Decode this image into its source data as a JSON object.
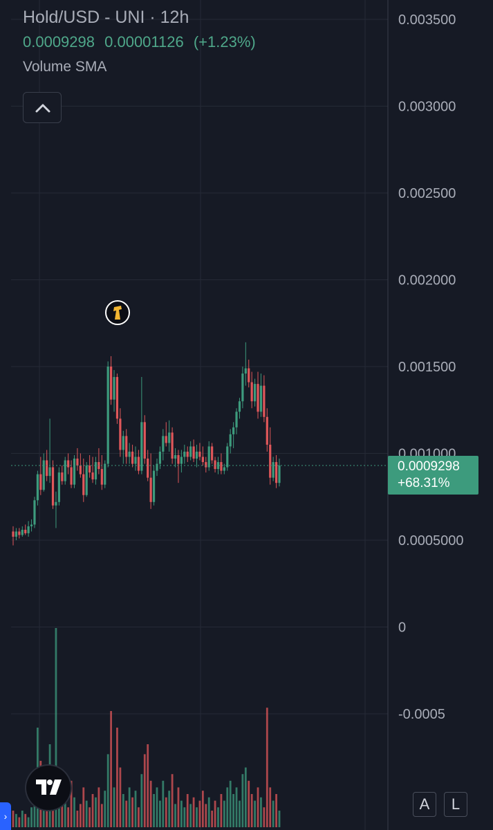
{
  "header": {
    "title": "Hold/USD - UNI · 12h",
    "last_price": "0.0009298",
    "change_abs": "0.00001126",
    "change_pct": "(+1.23%)",
    "indicator": "Volume SMA"
  },
  "price_tag": {
    "price": "0.0009298",
    "change": "+68.31%"
  },
  "buttons": {
    "auto_scale": "A",
    "log_scale": "L"
  },
  "colors": {
    "up": "#3d9b7d",
    "down": "#e0575a",
    "background": "#161a25",
    "grid": "#252a36",
    "text": "#a9adb8"
  },
  "icons": {
    "collapse": "chevron-up-icon",
    "logo": "tradingview-logo-icon",
    "event": "event-marker-icon"
  },
  "chart_data": {
    "type": "candlestick",
    "y_axis_labels": [
      "0.003500",
      "0.003000",
      "0.002500",
      "0.002000",
      "0.001500",
      "0.001000",
      "0.0005000",
      "0",
      "-0.0005"
    ],
    "y_axis_values": [
      0.0035,
      0.003,
      0.0025,
      0.002,
      0.0015,
      0.001,
      0.0005,
      0,
      -0.0005
    ],
    "last_price": 0.0009298,
    "candles": [
      [
        0.00055,
        0.00058,
        0.00047,
        0.00052
      ],
      [
        0.00052,
        0.00057,
        0.0005,
        0.00055
      ],
      [
        0.00055,
        0.00057,
        0.00051,
        0.00053
      ],
      [
        0.00053,
        0.00058,
        0.00052,
        0.00056
      ],
      [
        0.00056,
        0.00059,
        0.00053,
        0.00054
      ],
      [
        0.00054,
        0.00061,
        0.00052,
        0.00058
      ],
      [
        0.00058,
        0.00062,
        0.00055,
        0.00059
      ],
      [
        0.00059,
        0.00075,
        0.00057,
        0.00073
      ],
      [
        0.00073,
        0.0009,
        0.0007,
        0.00088
      ],
      [
        0.00088,
        0.00098,
        0.00076,
        0.00079
      ],
      [
        0.00079,
        0.001,
        0.00078,
        0.00096
      ],
      [
        0.00096,
        0.00102,
        0.00084,
        0.00087
      ],
      [
        0.00087,
        0.0012,
        0.00083,
        0.00092
      ],
      [
        0.00092,
        0.00096,
        0.00068,
        0.0007
      ],
      [
        0.0007,
        0.00078,
        0.00057,
        0.00072
      ],
      [
        0.00072,
        0.00092,
        0.0007,
        0.00089
      ],
      [
        0.00089,
        0.00093,
        0.00082,
        0.00084
      ],
      [
        0.00084,
        0.00098,
        0.00082,
        0.00096
      ],
      [
        0.00096,
        0.001,
        0.00088,
        0.00092
      ],
      [
        0.00092,
        0.00096,
        0.0008,
        0.00082
      ],
      [
        0.00082,
        0.00099,
        0.0008,
        0.00097
      ],
      [
        0.00097,
        0.00103,
        0.0009,
        0.00093
      ],
      [
        0.00093,
        0.001,
        0.00086,
        0.00088
      ],
      [
        0.00088,
        0.00097,
        0.00072,
        0.00076
      ],
      [
        0.00076,
        0.00095,
        0.00075,
        0.00093
      ],
      [
        0.00093,
        0.00099,
        0.00086,
        0.00089
      ],
      [
        0.00089,
        0.00098,
        0.00083,
        0.00085
      ],
      [
        0.00085,
        0.00098,
        0.00082,
        0.00095
      ],
      [
        0.00095,
        0.00103,
        0.00088,
        0.00091
      ],
      [
        0.00091,
        0.00099,
        0.00079,
        0.00082
      ],
      [
        0.00082,
        0.00096,
        0.0008,
        0.00094
      ],
      [
        0.00094,
        0.00153,
        0.00092,
        0.0015
      ],
      [
        0.0015,
        0.00156,
        0.00128,
        0.00131
      ],
      [
        0.00131,
        0.00148,
        0.00124,
        0.00144
      ],
      [
        0.00144,
        0.00146,
        0.00117,
        0.0012
      ],
      [
        0.0012,
        0.00126,
        0.00098,
        0.00102
      ],
      [
        0.00102,
        0.00113,
        0.00094,
        0.0011
      ],
      [
        0.0011,
        0.00114,
        0.00094,
        0.00098
      ],
      [
        0.00098,
        0.00106,
        0.00094,
        0.00101
      ],
      [
        0.00101,
        0.00105,
        0.00092,
        0.00094
      ],
      [
        0.00094,
        0.00104,
        0.0009,
        0.00098
      ],
      [
        0.00098,
        0.00102,
        0.00088,
        0.0009
      ],
      [
        0.0009,
        0.00144,
        0.00088,
        0.00118
      ],
      [
        0.00118,
        0.00122,
        0.00094,
        0.00097
      ],
      [
        0.00097,
        0.00102,
        0.00084,
        0.00086
      ],
      [
        0.00086,
        0.001,
        0.00068,
        0.00072
      ],
      [
        0.00072,
        0.00093,
        0.0007,
        0.0009
      ],
      [
        0.0009,
        0.00097,
        0.00087,
        0.00094
      ],
      [
        0.00094,
        0.00104,
        0.00091,
        0.00101
      ],
      [
        0.00101,
        0.00114,
        0.00096,
        0.0011
      ],
      [
        0.0011,
        0.00118,
        0.00104,
        0.00106
      ],
      [
        0.00106,
        0.00119,
        0.00101,
        0.00112
      ],
      [
        0.00112,
        0.00115,
        0.00094,
        0.00097
      ],
      [
        0.00097,
        0.00103,
        0.00092,
        0.00099
      ],
      [
        0.00099,
        0.00102,
        0.00083,
        0.00094
      ],
      [
        0.00094,
        0.00102,
        0.00089,
        0.00098
      ],
      [
        0.00098,
        0.00105,
        0.00094,
        0.00101
      ],
      [
        0.00101,
        0.00104,
        0.00095,
        0.00098
      ],
      [
        0.00098,
        0.00107,
        0.00096,
        0.00104
      ],
      [
        0.00104,
        0.00108,
        0.00095,
        0.00097
      ],
      [
        0.00097,
        0.00105,
        0.00092,
        0.00101
      ],
      [
        0.00101,
        0.00106,
        0.00096,
        0.00098
      ],
      [
        0.00098,
        0.00104,
        0.00093,
        0.00095
      ],
      [
        0.00095,
        0.00098,
        0.00089,
        0.00092
      ],
      [
        0.00092,
        0.00107,
        0.0009,
        0.00104
      ],
      [
        0.00104,
        0.00106,
        0.00094,
        0.00096
      ],
      [
        0.00096,
        0.00098,
        0.00089,
        0.00091
      ],
      [
        0.00091,
        0.00098,
        0.00088,
        0.00095
      ],
      [
        0.00095,
        0.001,
        0.00088,
        0.0009
      ],
      [
        0.0009,
        0.00094,
        0.00088,
        0.00092
      ],
      [
        0.00092,
        0.00106,
        0.0009,
        0.00104
      ],
      [
        0.00104,
        0.00114,
        0.001,
        0.00111
      ],
      [
        0.00111,
        0.00118,
        0.00103,
        0.00115
      ],
      [
        0.00115,
        0.00126,
        0.00111,
        0.00124
      ],
      [
        0.00124,
        0.00132,
        0.0012,
        0.0013
      ],
      [
        0.0013,
        0.0015,
        0.00126,
        0.00146
      ],
      [
        0.00146,
        0.00164,
        0.00139,
        0.00149
      ],
      [
        0.00149,
        0.00154,
        0.00138,
        0.00141
      ],
      [
        0.00141,
        0.00147,
        0.00126,
        0.0013
      ],
      [
        0.0013,
        0.00143,
        0.00127,
        0.0014
      ],
      [
        0.0014,
        0.00147,
        0.0012,
        0.00124
      ],
      [
        0.00124,
        0.00146,
        0.00121,
        0.00139
      ],
      [
        0.00139,
        0.00145,
        0.00118,
        0.00121
      ],
      [
        0.00121,
        0.00126,
        0.00101,
        0.00105
      ],
      [
        0.00105,
        0.00115,
        0.00082,
        0.00086
      ],
      [
        0.00086,
        0.00098,
        0.00084,
        0.00095
      ],
      [
        0.00095,
        0.00099,
        0.0008,
        0.00083
      ],
      [
        0.00083,
        0.00097,
        0.00081,
        0.00093
      ]
    ],
    "volumes": [
      5e-05,
      4e-05,
      3e-05,
      5e-05,
      4e-05,
      3e-05,
      6e-05,
      0.00012,
      0.0003,
      0.0002,
      0.00015,
      0.0001,
      0.00025,
      0.00016,
      0.0006,
      0.00012,
      8e-05,
      0.0001,
      6e-05,
      0.00014,
      9e-05,
      5e-05,
      7e-05,
      0.00012,
      8e-05,
      6e-05,
      0.0001,
      9e-05,
      0.00012,
      7e-05,
      0.00011,
      0.00022,
      0.00035,
      0.00012,
      0.0003,
      0.00018,
      0.0001,
      8e-05,
      0.00012,
      9e-05,
      0.00011,
      6e-05,
      0.00016,
      0.00022,
      0.00025,
      0.00014,
      0.0001,
      0.00012,
      8e-05,
      0.00014,
      9e-05,
      0.00011,
      0.00016,
      7e-05,
      0.00012,
      8e-05,
      6e-05,
      0.0001,
      7e-05,
      9e-05,
      6e-05,
      8e-05,
      0.00011,
      7e-05,
      9e-05,
      5e-05,
      8e-05,
      6e-05,
      0.0001,
      8e-05,
      0.00012,
      0.00014,
      0.0001,
      0.00012,
      8e-05,
      0.00016,
      0.00018,
      0.00014,
      0.0001,
      8e-05,
      0.00012,
      9e-05,
      6e-05,
      0.00036,
      0.00012,
      8e-05,
      0.0001,
      5e-05
    ]
  }
}
